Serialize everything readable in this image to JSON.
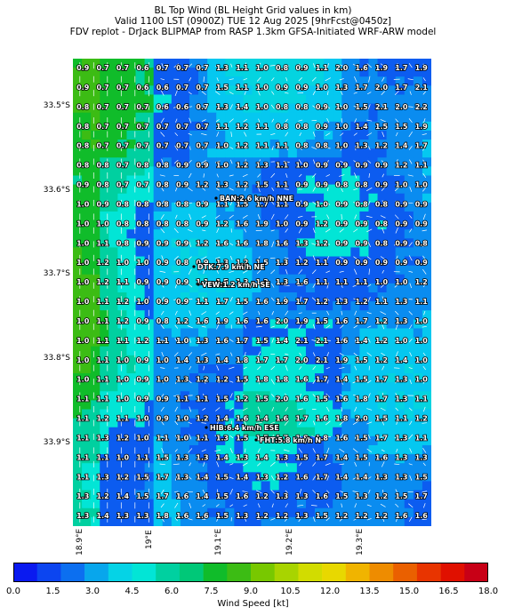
{
  "title": {
    "line1": "BL Top Wind (BL Height Grid values in km)",
    "line2": "Valid 1100 LST (0900Z) TUE 12 Aug 2025 [9hrFcst@0450z]",
    "line3": "FDV replot - DrJack BLIPMAP from RASP 1.3km GFSA-Initiated WRF-ARW model"
  },
  "axes": {
    "lat_labels": [
      "33.5°S",
      "33.6°S",
      "33.7°S",
      "33.8°S",
      "33.9°S"
    ],
    "lon_labels": [
      "18.9°E",
      "19°E",
      "19.1°E",
      "19.2°E",
      "19.3°E"
    ]
  },
  "grid_values": [
    [
      "0.9",
      "0.7",
      "0.7",
      "0.6",
      "0.7",
      "0.7",
      "0.7",
      "1.3",
      "1.1",
      "1.0",
      "0.8",
      "0.9",
      "1.1",
      "2.0",
      "1.6",
      "1.9",
      "1.7",
      "1.9"
    ],
    [
      "0.9",
      "0.7",
      "0.7",
      "0.6",
      "0.6",
      "0.7",
      "0.7",
      "1.5",
      "1.1",
      "1.0",
      "0.9",
      "0.9",
      "1.0",
      "1.3",
      "1.7",
      "2.0",
      "1.7",
      "2.1"
    ],
    [
      "0.8",
      "0.7",
      "0.7",
      "0.7",
      "0.6",
      "0.6",
      "0.7",
      "1.3",
      "1.4",
      "1.0",
      "0.8",
      "0.8",
      "0.9",
      "1.0",
      "1.5",
      "2.1",
      "2.0",
      "2.2"
    ],
    [
      "0.8",
      "0.7",
      "0.7",
      "0.7",
      "0.7",
      "0.7",
      "0.7",
      "1.1",
      "1.2",
      "1.1",
      "0.8",
      "0.8",
      "0.9",
      "1.0",
      "1.4",
      "1.5",
      "1.5",
      "1.9"
    ],
    [
      "0.8",
      "0.7",
      "0.7",
      "0.7",
      "0.7",
      "0.7",
      "0.7",
      "1.0",
      "1.2",
      "1.1",
      "1.1",
      "0.8",
      "0.8",
      "1.0",
      "1.3",
      "1.2",
      "1.4",
      "1.7"
    ],
    [
      "0.8",
      "0.8",
      "0.7",
      "0.8",
      "0.8",
      "0.9",
      "0.9",
      "1.0",
      "1.2",
      "1.3",
      "1.1",
      "1.0",
      "0.9",
      "0.9",
      "0.9",
      "0.9",
      "1.2",
      "1.1"
    ],
    [
      "0.9",
      "0.8",
      "0.7",
      "0.7",
      "0.8",
      "0.9",
      "1.2",
      "1.3",
      "1.2",
      "1.5",
      "1.1",
      "0.9",
      "0.9",
      "0.8",
      "0.8",
      "0.9",
      "1.0",
      "1.0"
    ],
    [
      "1.0",
      "0.9",
      "0.8",
      "0.8",
      "0.8",
      "0.8",
      "0.9",
      "1.1",
      "1.5",
      "1.7",
      "1.1",
      "0.9",
      "1.0",
      "0.9",
      "0.8",
      "0.8",
      "0.9",
      "0.9"
    ],
    [
      "1.0",
      "1.0",
      "0.8",
      "0.8",
      "0.8",
      "0.8",
      "0.9",
      "1.2",
      "1.6",
      "1.9",
      "1.0",
      "0.9",
      "1.2",
      "0.9",
      "0.9",
      "0.8",
      "0.9",
      "0.9"
    ],
    [
      "1.0",
      "1.1",
      "0.8",
      "0.9",
      "0.9",
      "0.9",
      "1.2",
      "1.6",
      "1.6",
      "1.8",
      "1.6",
      "1.3",
      "1.2",
      "0.9",
      "0.9",
      "0.8",
      "0.9",
      "0.8"
    ],
    [
      "1.0",
      "1.2",
      "1.0",
      "1.0",
      "0.9",
      "0.8",
      "0.9",
      "1.3",
      "1.2",
      "1.5",
      "1.3",
      "1.2",
      "1.1",
      "0.9",
      "0.9",
      "0.9",
      "0.9",
      "0.9"
    ],
    [
      "1.0",
      "1.2",
      "1.1",
      "0.9",
      "0.9",
      "0.9",
      "1.1",
      "1.5",
      "1.3",
      "1.3",
      "1.3",
      "1.6",
      "1.1",
      "1.1",
      "1.1",
      "1.0",
      "1.0",
      "1.2"
    ],
    [
      "1.0",
      "1.1",
      "1.2",
      "1.0",
      "0.9",
      "0.9",
      "1.1",
      "1.7",
      "1.5",
      "1.6",
      "1.9",
      "1.7",
      "1.2",
      "1.3",
      "1.2",
      "1.1",
      "1.3",
      "1.1"
    ],
    [
      "1.0",
      "1.1",
      "1.2",
      "0.9",
      "0.8",
      "1.2",
      "1.6",
      "1.9",
      "1.6",
      "1.6",
      "2.0",
      "1.9",
      "1.5",
      "1.6",
      "1.7",
      "1.2",
      "1.3",
      "1.0"
    ],
    [
      "1.0",
      "1.1",
      "1.1",
      "1.2",
      "1.1",
      "1.0",
      "1.3",
      "1.6",
      "1.7",
      "1.5",
      "1.4",
      "2.1",
      "2.1",
      "1.6",
      "1.4",
      "1.2",
      "1.0",
      "1.0"
    ],
    [
      "1.0",
      "1.1",
      "1.0",
      "0.9",
      "1.0",
      "1.4",
      "1.3",
      "1.4",
      "1.8",
      "1.7",
      "1.7",
      "2.0",
      "2.1",
      "1.9",
      "1.5",
      "1.2",
      "1.4",
      "1.0"
    ],
    [
      "1.0",
      "1.1",
      "1.0",
      "0.9",
      "1.0",
      "1.3",
      "1.2",
      "1.2",
      "1.5",
      "1.8",
      "1.8",
      "1.6",
      "1.7",
      "1.4",
      "1.5",
      "1.7",
      "1.3",
      "1.0"
    ],
    [
      "1.1",
      "1.1",
      "1.0",
      "0.9",
      "0.9",
      "1.1",
      "1.1",
      "1.5",
      "1.2",
      "1.5",
      "2.0",
      "1.6",
      "1.5",
      "1.6",
      "1.8",
      "1.7",
      "1.3",
      "1.1"
    ],
    [
      "1.1",
      "1.2",
      "1.1",
      "1.0",
      "0.9",
      "1.0",
      "1.2",
      "1.4",
      "1.6",
      "1.4",
      "1.6",
      "1.7",
      "1.6",
      "1.8",
      "2.0",
      "1.5",
      "1.1",
      "1.2"
    ],
    [
      "1.1",
      "1.3",
      "1.2",
      "1.0",
      "1.1",
      "1.0",
      "1.1",
      "1.3",
      "1.5",
      "1.5",
      "1.7",
      "1.8",
      "1.8",
      "1.6",
      "1.5",
      "1.7",
      "1.3",
      "1.1"
    ],
    [
      "1.1",
      "1.1",
      "1.0",
      "1.1",
      "1.5",
      "1.3",
      "1.3",
      "1.4",
      "1.3",
      "1.4",
      "1.3",
      "1.5",
      "1.7",
      "1.4",
      "1.5",
      "1.6",
      "1.3",
      "1.3"
    ],
    [
      "1.1",
      "1.3",
      "1.2",
      "1.5",
      "1.7",
      "1.3",
      "1.4",
      "1.5",
      "1.4",
      "1.3",
      "1.2",
      "1.6",
      "1.7",
      "1.4",
      "1.4",
      "1.3",
      "1.3",
      "1.5"
    ],
    [
      "1.3",
      "1.2",
      "1.4",
      "1.5",
      "1.7",
      "1.6",
      "1.4",
      "1.5",
      "1.6",
      "1.2",
      "1.3",
      "1.3",
      "1.6",
      "1.5",
      "1.3",
      "1.2",
      "1.5",
      "1.7"
    ],
    [
      "1.3",
      "1.4",
      "1.3",
      "1.3",
      "1.8",
      "1.6",
      "1.6",
      "1.5",
      "1.3",
      "1.2",
      "1.2",
      "1.3",
      "1.5",
      "1.2",
      "1.2",
      "1.2",
      "1.6",
      "1.6"
    ]
  ],
  "locations": [
    {
      "name": "BAN:2.6 km/h NNE"
    },
    {
      "name": "DTK:7.9 km/h NE"
    },
    {
      "name": "VEW:1.2 km/h SE"
    },
    {
      "name": "HIB:6.4 km/h ESE"
    },
    {
      "name": "FHT:5.8 km/h N"
    }
  ],
  "colorbar": {
    "label": "Wind Speed [kt]",
    "ticks": [
      "0.0",
      "1.5",
      "3.0",
      "4.5",
      "6.0",
      "7.5",
      "9.0",
      "10.5",
      "12.0",
      "13.5",
      "15.0",
      "16.5",
      "18.0"
    ],
    "colors": [
      "#0a1af0",
      "#0c45f0",
      "#0c6ff0",
      "#08a6ec",
      "#05d3e6",
      "#02e5d6",
      "#00d0a0",
      "#00c878",
      "#10bc2a",
      "#3cbc14",
      "#78c800",
      "#a8d400",
      "#d2dc00",
      "#e8d800",
      "#f0b400",
      "#ee8c00",
      "#ea6000",
      "#e83400",
      "#e01000",
      "#c80016"
    ]
  }
}
